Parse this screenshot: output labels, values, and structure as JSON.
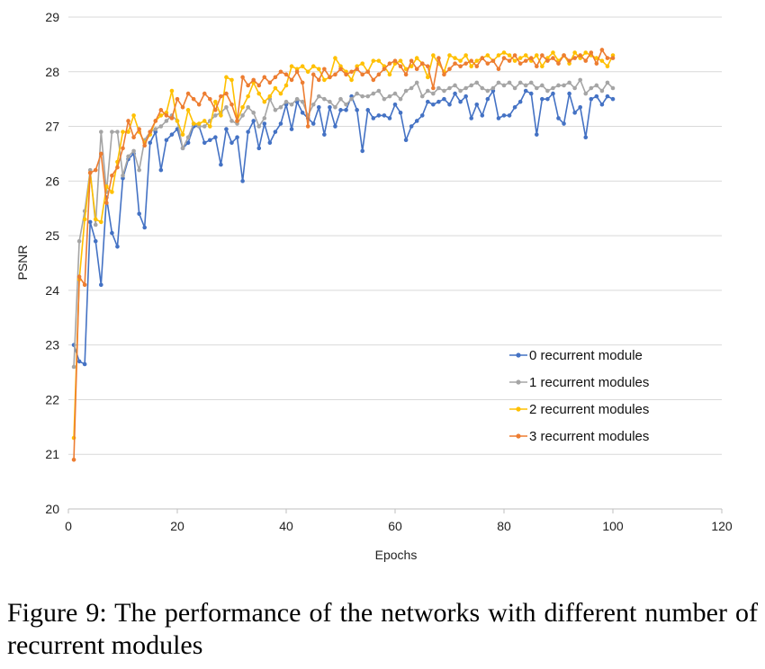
{
  "caption": "Figure 9: The performance of the networks with different number of recurrent modules",
  "chart_data": {
    "type": "line",
    "title": "",
    "xlabel": "Epochs",
    "ylabel": "PSNR",
    "xlim": [
      0,
      120
    ],
    "ylim": [
      20,
      29
    ],
    "xticks": [
      "0",
      "20",
      "40",
      "60",
      "80",
      "100",
      "120"
    ],
    "yticks": [
      "20",
      "21",
      "22",
      "23",
      "24",
      "25",
      "26",
      "27",
      "28",
      "29"
    ],
    "grid": "horizontal",
    "legend_position": "bottom-right",
    "series": [
      {
        "name": "0 recurrent module",
        "color": "#4472C4",
        "values": [
          23.0,
          22.7,
          22.65,
          25.25,
          24.9,
          24.1,
          25.7,
          25.05,
          24.8,
          26.05,
          26.4,
          26.5,
          25.4,
          25.15,
          26.7,
          26.9,
          26.2,
          26.75,
          26.85,
          26.95,
          26.6,
          26.7,
          27.0,
          27.0,
          26.7,
          26.75,
          26.8,
          26.3,
          26.95,
          26.7,
          26.8,
          26.0,
          26.9,
          27.1,
          26.6,
          27.05,
          26.7,
          26.9,
          27.05,
          27.4,
          26.95,
          27.45,
          27.25,
          27.15,
          27.05,
          27.35,
          26.85,
          27.35,
          27.0,
          27.3,
          27.3,
          27.55,
          27.3,
          26.55,
          27.3,
          27.15,
          27.2,
          27.2,
          27.15,
          27.4,
          27.25,
          26.75,
          27.0,
          27.1,
          27.2,
          27.45,
          27.4,
          27.45,
          27.5,
          27.4,
          27.6,
          27.45,
          27.55,
          27.15,
          27.4,
          27.2,
          27.5,
          27.65,
          27.15,
          27.2,
          27.2,
          27.35,
          27.45,
          27.65,
          27.6,
          26.85,
          27.5,
          27.5,
          27.6,
          27.15,
          27.05,
          27.6,
          27.25,
          27.35,
          26.8,
          27.5,
          27.55,
          27.4,
          27.55,
          27.5
        ]
      },
      {
        "name": "1 recurrent modules",
        "color": "#A5A5A5",
        "values": [
          22.6,
          24.9,
          25.45,
          26.2,
          25.2,
          26.9,
          25.8,
          26.9,
          26.9,
          26.1,
          26.45,
          26.55,
          26.2,
          26.75,
          26.9,
          26.95,
          27.0,
          27.1,
          27.2,
          27.1,
          26.6,
          26.8,
          27.05,
          27.0,
          27.0,
          27.1,
          27.2,
          27.25,
          27.35,
          27.1,
          27.05,
          27.2,
          27.35,
          27.25,
          27.0,
          27.15,
          27.5,
          27.3,
          27.35,
          27.45,
          27.4,
          27.5,
          27.45,
          27.2,
          27.4,
          27.55,
          27.5,
          27.45,
          27.35,
          27.5,
          27.4,
          27.5,
          27.6,
          27.55,
          27.55,
          27.6,
          27.65,
          27.5,
          27.55,
          27.6,
          27.5,
          27.65,
          27.7,
          27.8,
          27.55,
          27.65,
          27.6,
          27.7,
          27.65,
          27.7,
          27.75,
          27.65,
          27.7,
          27.75,
          27.8,
          27.7,
          27.65,
          27.7,
          27.8,
          27.75,
          27.8,
          27.7,
          27.8,
          27.75,
          27.8,
          27.7,
          27.75,
          27.65,
          27.7,
          27.75,
          27.75,
          27.8,
          27.7,
          27.85,
          27.6,
          27.7,
          27.75,
          27.65,
          27.8,
          27.7
        ]
      },
      {
        "name": "2 recurrent modules",
        "color": "#FFC000",
        "values": [
          21.3,
          24.2,
          25.3,
          26.15,
          25.3,
          25.25,
          25.9,
          25.8,
          26.35,
          26.9,
          26.9,
          27.2,
          26.9,
          26.7,
          26.85,
          27.1,
          27.2,
          27.25,
          27.65,
          27.1,
          26.85,
          27.3,
          27.05,
          27.05,
          27.1,
          27.0,
          27.45,
          27.2,
          27.9,
          27.85,
          27.1,
          27.35,
          27.55,
          27.8,
          27.6,
          27.45,
          27.55,
          27.7,
          27.6,
          27.75,
          28.1,
          28.05,
          28.1,
          28.0,
          28.1,
          28.05,
          27.85,
          27.9,
          28.25,
          28.1,
          28.0,
          27.85,
          28.1,
          28.15,
          28.0,
          28.2,
          28.2,
          28.1,
          27.95,
          28.15,
          28.2,
          28.05,
          28.1,
          28.25,
          28.15,
          27.9,
          28.3,
          28.15,
          28.0,
          28.3,
          28.25,
          28.2,
          28.3,
          28.1,
          28.2,
          28.25,
          28.3,
          28.2,
          28.3,
          28.35,
          28.3,
          28.2,
          28.25,
          28.3,
          28.2,
          28.3,
          28.1,
          28.25,
          28.35,
          28.2,
          28.3,
          28.15,
          28.35,
          28.25,
          28.35,
          28.3,
          28.25,
          28.2,
          28.1,
          28.3
        ]
      },
      {
        "name": "3 recurrent modules",
        "color": "#ED7D31",
        "values": [
          20.9,
          24.25,
          24.1,
          26.15,
          26.2,
          26.5,
          25.6,
          26.1,
          26.25,
          26.6,
          27.1,
          26.8,
          26.95,
          26.65,
          26.9,
          27.1,
          27.3,
          27.2,
          27.15,
          27.5,
          27.35,
          27.6,
          27.5,
          27.4,
          27.6,
          27.5,
          27.3,
          27.55,
          27.6,
          27.4,
          27.1,
          27.9,
          27.75,
          27.85,
          27.75,
          27.9,
          27.8,
          27.9,
          28.0,
          27.95,
          27.85,
          28.0,
          27.8,
          27.0,
          27.95,
          27.85,
          28.05,
          27.9,
          27.95,
          28.05,
          27.95,
          28.0,
          28.05,
          27.95,
          28.0,
          27.85,
          27.95,
          28.05,
          28.15,
          28.2,
          28.1,
          27.95,
          28.2,
          28.05,
          28.15,
          28.1,
          27.7,
          28.25,
          27.95,
          28.05,
          28.15,
          28.1,
          28.15,
          28.2,
          28.1,
          28.25,
          28.15,
          28.2,
          28.05,
          28.25,
          28.2,
          28.3,
          28.15,
          28.2,
          28.25,
          28.1,
          28.3,
          28.2,
          28.25,
          28.15,
          28.3,
          28.2,
          28.25,
          28.3,
          28.2,
          28.35,
          28.15,
          28.4,
          28.25,
          28.25
        ]
      }
    ]
  }
}
